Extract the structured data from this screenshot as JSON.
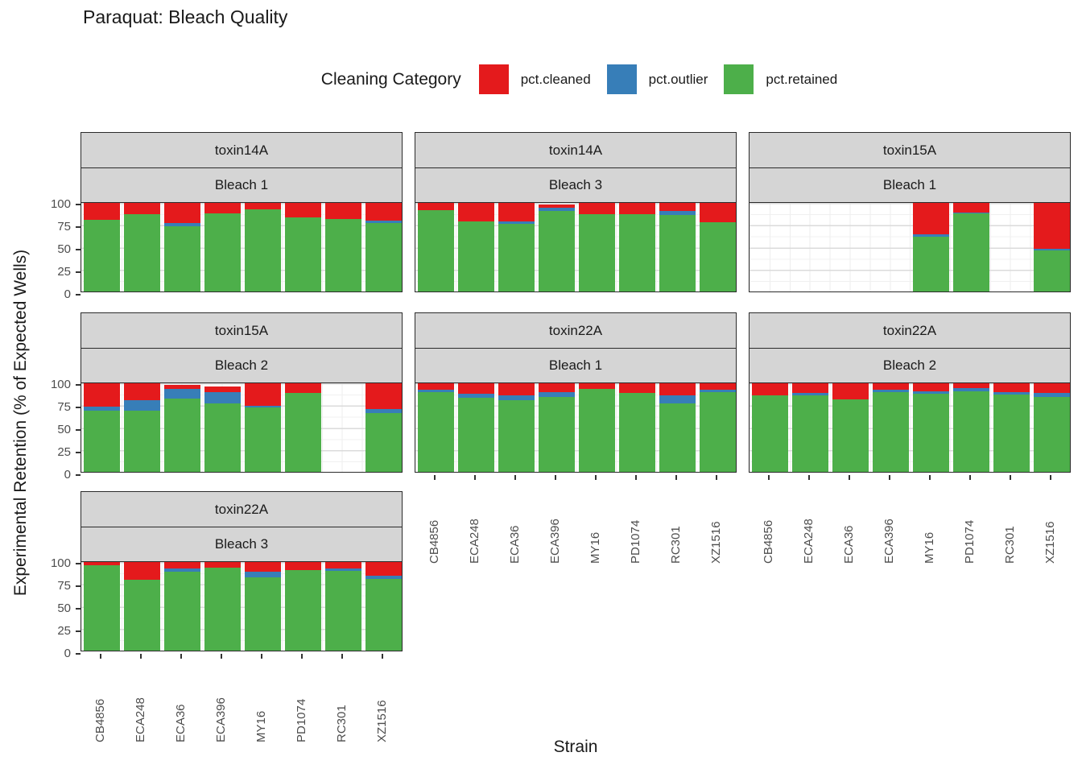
{
  "title": "Paraquat: Bleach Quality",
  "legend": {
    "title": "Cleaning Category",
    "position": "top",
    "items": [
      {
        "label": "pct.cleaned",
        "color": "#E41A1C"
      },
      {
        "label": "pct.outlier",
        "color": "#377EB8"
      },
      {
        "label": "pct.retained",
        "color": "#4DAF4A"
      }
    ]
  },
  "axes": {
    "x_title": "Strain",
    "y_title": "Experimental Retention (% of Expected Wells)",
    "y_ticks": [
      100,
      75,
      50,
      25,
      0
    ]
  },
  "chart_data": {
    "type": "bar",
    "stacked": true,
    "grid": true,
    "ylim": [
      0,
      100
    ],
    "legend_position": "top",
    "categories": [
      "CB4856",
      "ECA248",
      "ECA36",
      "ECA396",
      "MY16",
      "PD1074",
      "RC301",
      "XZ1516"
    ],
    "series_names": [
      "pct.cleaned",
      "pct.outlier",
      "pct.retained"
    ],
    "colors": {
      "pct.cleaned": "#E41A1C",
      "pct.outlier": "#377EB8",
      "pct.retained": "#4DAF4A"
    },
    "panels": [
      {
        "row": 0,
        "col": 0,
        "facet_toxin": "toxin14A",
        "facet_bleach": "Bleach 1",
        "values": {
          "pct.retained": [
            81,
            87,
            74,
            88,
            93,
            84,
            82,
            77
          ],
          "pct.outlier": [
            0,
            0,
            3,
            0,
            0,
            0,
            0,
            3
          ],
          "pct.cleaned": [
            19,
            13,
            23,
            12,
            7,
            16,
            18,
            20
          ]
        }
      },
      {
        "row": 0,
        "col": 1,
        "facet_toxin": "toxin14A",
        "facet_bleach": "Bleach 3",
        "values": {
          "pct.retained": [
            92,
            79,
            76,
            91,
            87,
            87,
            86,
            78
          ],
          "pct.outlier": [
            0,
            0,
            3,
            4,
            0,
            0,
            5,
            0
          ],
          "pct.cleaned": [
            8,
            21,
            21,
            3,
            13,
            13,
            9,
            22
          ]
        }
      },
      {
        "row": 0,
        "col": 2,
        "facet_toxin": "toxin15A",
        "facet_bleach": "Bleach 1",
        "values": {
          "pct.retained": [
            null,
            null,
            null,
            null,
            62,
            88,
            null,
            46
          ],
          "pct.outlier": [
            null,
            null,
            null,
            null,
            3,
            1,
            null,
            2
          ],
          "pct.cleaned": [
            null,
            null,
            null,
            null,
            35,
            11,
            null,
            52
          ]
        }
      },
      {
        "row": 1,
        "col": 0,
        "facet_toxin": "toxin15A",
        "facet_bleach": "Bleach 2",
        "values": {
          "pct.retained": [
            69,
            69,
            83,
            77,
            73,
            89,
            null,
            66
          ],
          "pct.outlier": [
            5,
            12,
            11,
            13,
            2,
            0,
            null,
            5
          ],
          "pct.cleaned": [
            26,
            19,
            4,
            6,
            25,
            11,
            null,
            29
          ]
        }
      },
      {
        "row": 1,
        "col": 1,
        "facet_toxin": "toxin22A",
        "facet_bleach": "Bleach 1",
        "values": {
          "pct.retained": [
            90,
            84,
            81,
            85,
            94,
            89,
            77,
            90
          ],
          "pct.outlier": [
            3,
            4,
            5,
            5,
            0,
            0,
            9,
            3
          ],
          "pct.cleaned": [
            7,
            12,
            14,
            10,
            6,
            11,
            14,
            7
          ]
        }
      },
      {
        "row": 1,
        "col": 2,
        "facet_toxin": "toxin22A",
        "facet_bleach": "Bleach 2",
        "values": {
          "pct.retained": [
            86,
            86,
            82,
            90,
            88,
            91,
            87,
            85
          ],
          "pct.outlier": [
            0,
            3,
            0,
            3,
            3,
            4,
            3,
            4
          ],
          "pct.cleaned": [
            14,
            11,
            18,
            7,
            9,
            5,
            10,
            11
          ]
        }
      },
      {
        "row": 2,
        "col": 0,
        "facet_toxin": "toxin22A",
        "facet_bleach": "Bleach 3",
        "values": {
          "pct.retained": [
            96,
            80,
            89,
            94,
            83,
            91,
            90,
            81
          ],
          "pct.outlier": [
            0,
            0,
            4,
            0,
            6,
            0,
            3,
            4
          ],
          "pct.cleaned": [
            4,
            20,
            7,
            6,
            11,
            9,
            7,
            15
          ]
        }
      }
    ]
  }
}
